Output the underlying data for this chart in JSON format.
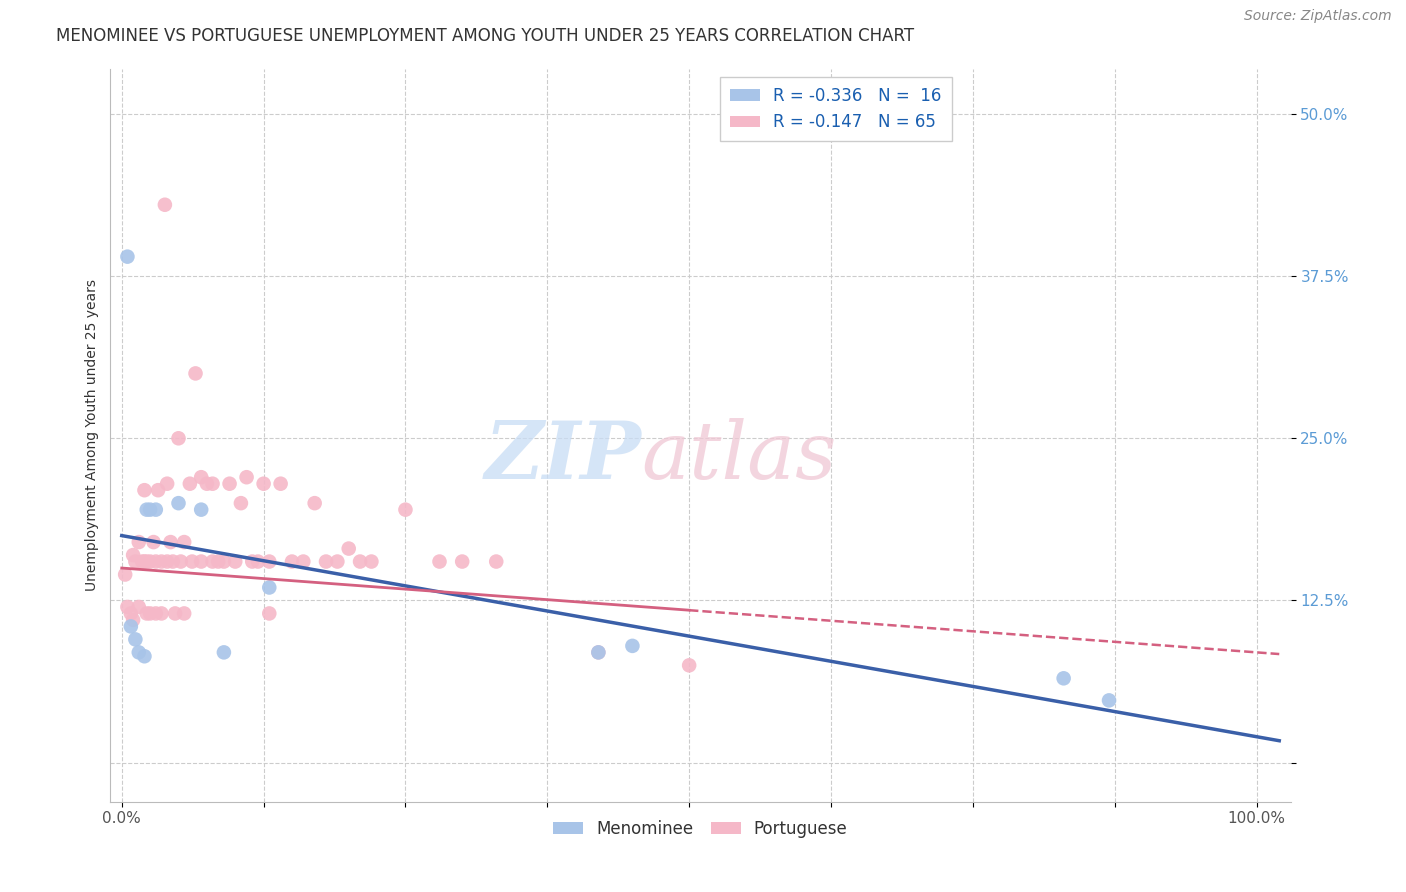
{
  "title": "MENOMINEE VS PORTUGUESE UNEMPLOYMENT AMONG YOUTH UNDER 25 YEARS CORRELATION CHART",
  "source": "Source: ZipAtlas.com",
  "ylabel": "Unemployment Among Youth under 25 years",
  "xlabel": "",
  "xlim": [
    -0.01,
    1.03
  ],
  "ylim": [
    -0.03,
    0.535
  ],
  "xtick_positions": [
    0.0,
    0.125,
    0.25,
    0.375,
    0.5,
    0.625,
    0.75,
    0.875,
    1.0
  ],
  "xticklabels": [
    "0.0%",
    "",
    "",
    "",
    "",
    "",
    "",
    "",
    "100.0%"
  ],
  "ytick_positions": [
    0.0,
    0.125,
    0.25,
    0.375,
    0.5
  ],
  "yticklabels": [
    "",
    "12.5%",
    "25.0%",
    "37.5%",
    "50.0%"
  ],
  "menominee_color": "#a8c4e8",
  "portuguese_color": "#f5b8c8",
  "menominee_line_color": "#3a5fa8",
  "portuguese_line_color": "#d46080",
  "legend_text_1": "R = -0.336   N =  16",
  "legend_text_2": "R = -0.147   N = 65",
  "watermark_part1": "ZIP",
  "watermark_part2": "atlas",
  "background_color": "#ffffff",
  "grid_color": "#cccccc",
  "tick_color_y": "#5b9bd5",
  "tick_color_x": "#555555",
  "title_fontsize": 12,
  "axis_label_fontsize": 10,
  "tick_fontsize": 11,
  "legend_fontsize": 12,
  "source_fontsize": 10,
  "menominee_x": [
    0.005,
    0.008,
    0.012,
    0.015,
    0.02,
    0.022,
    0.025,
    0.03,
    0.05,
    0.07,
    0.09,
    0.13,
    0.42,
    0.45,
    0.83,
    0.87
  ],
  "menominee_y": [
    0.39,
    0.105,
    0.095,
    0.085,
    0.082,
    0.195,
    0.195,
    0.195,
    0.2,
    0.195,
    0.085,
    0.135,
    0.085,
    0.09,
    0.065,
    0.048
  ],
  "portuguese_x": [
    0.003,
    0.005,
    0.008,
    0.01,
    0.01,
    0.012,
    0.015,
    0.015,
    0.018,
    0.02,
    0.02,
    0.022,
    0.022,
    0.025,
    0.025,
    0.028,
    0.03,
    0.03,
    0.032,
    0.035,
    0.035,
    0.038,
    0.04,
    0.04,
    0.043,
    0.045,
    0.047,
    0.05,
    0.052,
    0.055,
    0.055,
    0.06,
    0.062,
    0.065,
    0.07,
    0.07,
    0.075,
    0.08,
    0.08,
    0.085,
    0.09,
    0.095,
    0.1,
    0.105,
    0.11,
    0.115,
    0.12,
    0.125,
    0.13,
    0.13,
    0.14,
    0.15,
    0.16,
    0.17,
    0.18,
    0.19,
    0.2,
    0.21,
    0.22,
    0.25,
    0.28,
    0.3,
    0.33,
    0.42,
    0.5
  ],
  "portuguese_y": [
    0.145,
    0.12,
    0.115,
    0.16,
    0.11,
    0.155,
    0.17,
    0.12,
    0.155,
    0.21,
    0.155,
    0.155,
    0.115,
    0.155,
    0.115,
    0.17,
    0.155,
    0.115,
    0.21,
    0.155,
    0.115,
    0.43,
    0.215,
    0.155,
    0.17,
    0.155,
    0.115,
    0.25,
    0.155,
    0.17,
    0.115,
    0.215,
    0.155,
    0.3,
    0.22,
    0.155,
    0.215,
    0.155,
    0.215,
    0.155,
    0.155,
    0.215,
    0.155,
    0.2,
    0.22,
    0.155,
    0.155,
    0.215,
    0.155,
    0.115,
    0.215,
    0.155,
    0.155,
    0.2,
    0.155,
    0.155,
    0.165,
    0.155,
    0.155,
    0.195,
    0.155,
    0.155,
    0.155,
    0.085,
    0.075
  ]
}
